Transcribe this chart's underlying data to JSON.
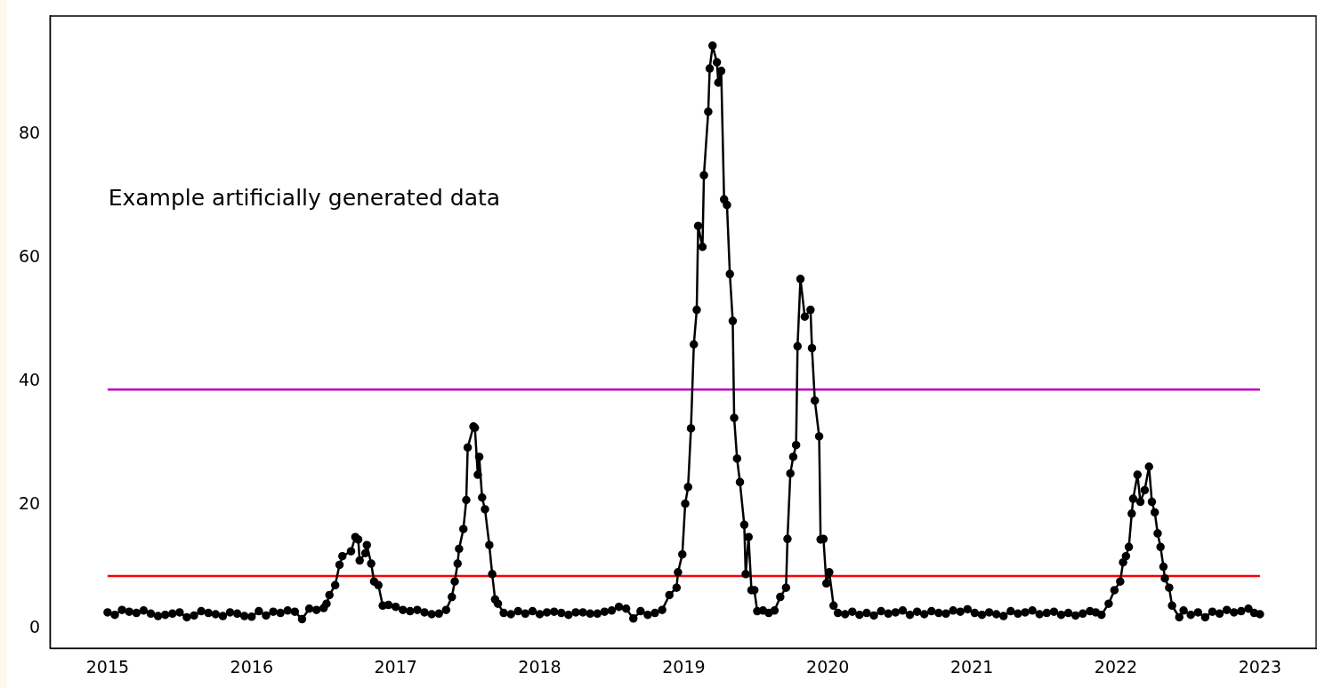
{
  "chart_data": {
    "type": "line",
    "xlim": [
      2014.6,
      2023.39
    ],
    "ylim": [
      -3.2,
      99.2
    ],
    "xticks": [
      2015,
      2016,
      2017,
      2018,
      2019,
      2020,
      2021,
      2022,
      2023
    ],
    "yticks": [
      0,
      20,
      40,
      60,
      80
    ],
    "grid": false,
    "legend": false,
    "marker": "circle",
    "line_style": "solid",
    "annotations": [
      "Example artificially generated data"
    ],
    "ref_lines": [
      {
        "axis": "y",
        "value": 38.7,
        "color": "#bf00bf"
      },
      {
        "axis": "y",
        "value": 8.5,
        "color": "#ff0000"
      }
    ],
    "series": [
      {
        "color": "#000000",
        "x": [
          2015.0,
          2015.05,
          2015.1,
          2015.15,
          2015.2,
          2015.25,
          2015.3,
          2015.35,
          2015.4,
          2015.45,
          2015.5,
          2015.55,
          2015.6,
          2015.65,
          2015.7,
          2015.75,
          2015.8,
          2015.85,
          2015.9,
          2015.95,
          2016.0,
          2016.05,
          2016.1,
          2016.15,
          2016.2,
          2016.25,
          2016.3,
          2016.35,
          2016.4,
          2016.45,
          2016.5,
          2016.52,
          2016.54,
          2016.58,
          2016.61,
          2016.63,
          2016.69,
          2016.72,
          2016.74,
          2016.75,
          2016.79,
          2016.8,
          2016.83,
          2016.85,
          2016.88,
          2016.91,
          2016.95,
          2017.0,
          2017.05,
          2017.1,
          2017.15,
          2017.2,
          2017.25,
          2017.3,
          2017.35,
          2017.39,
          2017.41,
          2017.43,
          2017.44,
          2017.47,
          2017.49,
          2017.5,
          2017.54,
          2017.55,
          2017.57,
          2017.58,
          2017.6,
          2017.62,
          2017.65,
          2017.67,
          2017.69,
          2017.71,
          2017.75,
          2017.8,
          2017.85,
          2017.9,
          2017.95,
          2018.0,
          2018.05,
          2018.1,
          2018.15,
          2018.2,
          2018.25,
          2018.3,
          2018.35,
          2018.4,
          2018.45,
          2018.5,
          2018.55,
          2018.6,
          2018.65,
          2018.7,
          2018.75,
          2018.8,
          2018.85,
          2018.9,
          2018.95,
          2018.96,
          2018.99,
          2019.01,
          2019.03,
          2019.05,
          2019.07,
          2019.09,
          2019.1,
          2019.13,
          2019.14,
          2019.17,
          2019.18,
          2019.2,
          2019.23,
          2019.24,
          2019.26,
          2019.28,
          2019.3,
          2019.32,
          2019.34,
          2019.35,
          2019.37,
          2019.39,
          2019.42,
          2019.43,
          2019.45,
          2019.47,
          2019.49,
          2019.51,
          2019.55,
          2019.59,
          2019.63,
          2019.67,
          2019.71,
          2019.72,
          2019.74,
          2019.76,
          2019.78,
          2019.79,
          2019.81,
          2019.84,
          2019.88,
          2019.89,
          2019.91,
          2019.94,
          2019.95,
          2019.97,
          2019.99,
          2020.01,
          2020.04,
          2020.07,
          2020.12,
          2020.17,
          2020.22,
          2020.27,
          2020.32,
          2020.37,
          2020.42,
          2020.47,
          2020.52,
          2020.57,
          2020.62,
          2020.67,
          2020.72,
          2020.77,
          2020.82,
          2020.87,
          2020.92,
          2020.97,
          2021.02,
          2021.07,
          2021.12,
          2021.17,
          2021.22,
          2021.27,
          2021.32,
          2021.37,
          2021.42,
          2021.47,
          2021.52,
          2021.57,
          2021.62,
          2021.67,
          2021.72,
          2021.77,
          2021.82,
          2021.86,
          2021.9,
          2021.95,
          2021.99,
          2022.03,
          2022.05,
          2022.07,
          2022.09,
          2022.11,
          2022.12,
          2022.15,
          2022.17,
          2022.2,
          2022.23,
          2022.25,
          2022.27,
          2022.29,
          2022.31,
          2022.33,
          2022.34,
          2022.37,
          2022.39,
          2022.44,
          2022.47,
          2022.52,
          2022.57,
          2022.62,
          2022.67,
          2022.72,
          2022.77,
          2022.82,
          2022.87,
          2022.92,
          2022.96,
          2023.0
        ],
        "values": [
          2.6,
          2.2,
          3.0,
          2.7,
          2.5,
          2.9,
          2.4,
          2.0,
          2.2,
          2.4,
          2.6,
          1.8,
          2.1,
          2.8,
          2.5,
          2.3,
          2.0,
          2.6,
          2.4,
          2.0,
          1.9,
          2.8,
          2.1,
          2.7,
          2.5,
          2.9,
          2.7,
          1.5,
          3.2,
          3.0,
          3.3,
          4.0,
          5.4,
          7.0,
          10.3,
          11.7,
          12.5,
          14.8,
          14.4,
          11.0,
          12.2,
          13.5,
          10.5,
          7.6,
          7.0,
          3.7,
          3.8,
          3.5,
          3.0,
          2.8,
          3.0,
          2.6,
          2.3,
          2.4,
          3.0,
          5.1,
          7.6,
          10.5,
          12.9,
          16.1,
          20.8,
          29.3,
          32.7,
          32.5,
          24.9,
          27.8,
          21.2,
          19.3,
          13.5,
          8.8,
          4.7,
          4.0,
          2.5,
          2.3,
          2.8,
          2.4,
          2.8,
          2.3,
          2.6,
          2.7,
          2.5,
          2.2,
          2.6,
          2.6,
          2.4,
          2.4,
          2.7,
          2.9,
          3.5,
          3.2,
          1.6,
          2.8,
          2.2,
          2.5,
          3.0,
          5.4,
          6.6,
          9.1,
          12.0,
          20.2,
          22.9,
          32.4,
          46.0,
          51.6,
          65.2,
          61.8,
          73.4,
          83.7,
          90.7,
          94.4,
          91.7,
          88.4,
          90.3,
          69.5,
          68.6,
          57.4,
          49.8,
          34.1,
          27.5,
          23.7,
          16.8,
          8.8,
          14.8,
          6.2,
          6.2,
          2.8,
          2.9,
          2.5,
          2.9,
          5.1,
          6.6,
          14.5,
          25.1,
          27.8,
          29.7,
          45.7,
          56.6,
          50.5,
          51.6,
          45.4,
          36.9,
          31.1,
          14.4,
          14.5,
          7.3,
          9.1,
          3.7,
          2.5,
          2.3,
          2.7,
          2.2,
          2.5,
          2.1,
          2.8,
          2.4,
          2.6,
          2.9,
          2.2,
          2.7,
          2.3,
          2.8,
          2.5,
          2.4,
          2.9,
          2.7,
          3.1,
          2.5,
          2.2,
          2.6,
          2.3,
          2.0,
          2.8,
          2.4,
          2.6,
          2.9,
          2.3,
          2.5,
          2.7,
          2.2,
          2.5,
          2.1,
          2.4,
          2.8,
          2.6,
          2.2,
          4.0,
          6.2,
          7.6,
          10.7,
          11.7,
          13.2,
          18.6,
          21.0,
          24.9,
          20.5,
          22.4,
          26.2,
          20.5,
          18.8,
          15.4,
          13.2,
          10.0,
          8.1,
          6.6,
          3.7,
          1.8,
          2.9,
          2.2,
          2.6,
          1.8,
          2.7,
          2.4,
          3.0,
          2.6,
          2.8,
          3.2,
          2.5,
          2.3
        ]
      }
    ]
  }
}
